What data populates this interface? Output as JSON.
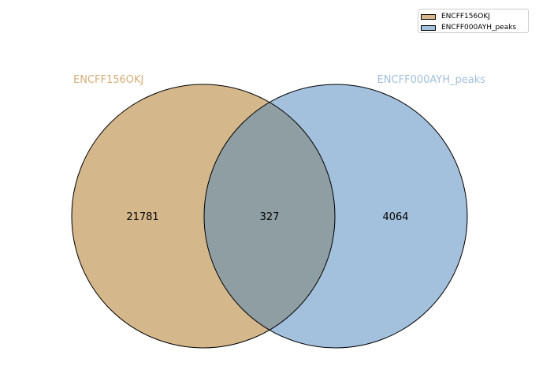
{
  "sets": [
    {
      "name": "ENCFF156OKJ",
      "color": "#d4b78b"
    },
    {
      "name": "ENCFF000AYH_peaks",
      "color": "#a3c0dc"
    }
  ],
  "overlap_color": "#8e9ea3",
  "label_colors": {
    "left": "#d6ae7a",
    "right": "#a3c0dc"
  },
  "counts": {
    "left_only": "21781",
    "intersection": "327",
    "right_only": "4064"
  },
  "legend": {
    "placement": "top-right",
    "entries": [
      "ENCFF156OKJ",
      "ENCFF000AYH_peaks"
    ]
  }
}
